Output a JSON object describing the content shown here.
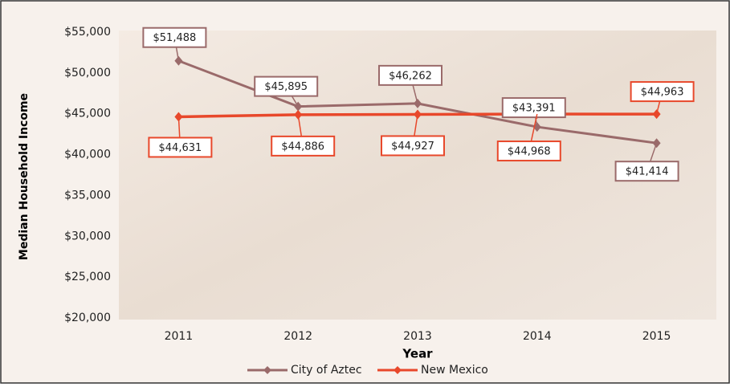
{
  "chart_data": {
    "type": "line",
    "categories": [
      "2011",
      "2012",
      "2013",
      "2014",
      "2015"
    ],
    "series": [
      {
        "name": "City of Aztec",
        "color": "#9a6a6a",
        "values": [
          51488,
          45895,
          46262,
          43391,
          41414
        ],
        "value_labels": [
          "$51,488",
          "$45,895",
          "$46,262",
          "$43,391",
          "$41,414"
        ]
      },
      {
        "name": "New Mexico",
        "color": "#e8482b",
        "values": [
          44631,
          44886,
          44927,
          44968,
          44963
        ],
        "value_labels": [
          "$44,631",
          "$44,886",
          "$44,927",
          "$44,968",
          "$44,963"
        ]
      }
    ],
    "x_label": "Year",
    "y_label": "Median Household Income",
    "ylim": [
      20000,
      55000
    ],
    "yticks": [
      {
        "value": 20000,
        "label": "$20,000"
      },
      {
        "value": 25000,
        "label": "$25,000"
      },
      {
        "value": 30000,
        "label": "$30,000"
      },
      {
        "value": 35000,
        "label": "$35,000"
      },
      {
        "value": 40000,
        "label": "$40,000"
      },
      {
        "value": 45000,
        "label": "$45,000"
      },
      {
        "value": 50000,
        "label": "$50,000"
      },
      {
        "value": 55000,
        "label": "$55,000"
      }
    ],
    "legend": "bottom",
    "grid": false
  }
}
